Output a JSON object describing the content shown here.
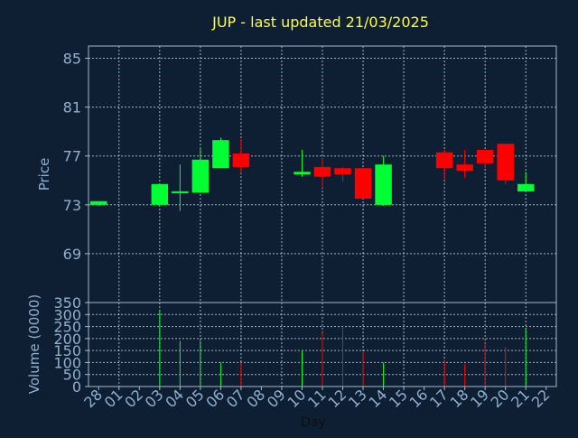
{
  "chart_data": {
    "type": "candlestick",
    "title": "JUP - last updated 21/03/2025",
    "xlabel": "Day",
    "ylabel_price": "Price",
    "ylabel_volume": "Volume (0000)",
    "price_ylim": [
      65,
      86
    ],
    "price_yticks": [
      69,
      73,
      77,
      81,
      85
    ],
    "volume_ylim": [
      0,
      350
    ],
    "volume_yticks": [
      0,
      50,
      100,
      150,
      200,
      250,
      300,
      350
    ],
    "grid": true,
    "x_tick_labels": [
      "28",
      "01",
      "02",
      "03",
      "04",
      "05",
      "06",
      "07",
      "08",
      "09",
      "10",
      "11",
      "12",
      "13",
      "14",
      "15",
      "16",
      "17",
      "18",
      "19",
      "20",
      "21",
      "22"
    ],
    "candles": [
      {
        "day": "28",
        "open": 73.0,
        "high": 73.3,
        "low": 72.9,
        "close": 73.3,
        "volume": 0
      },
      {
        "day": "03",
        "open": 73.0,
        "high": 74.7,
        "low": 73.0,
        "close": 74.7,
        "volume": 320
      },
      {
        "day": "04",
        "open": 74.0,
        "high": 76.3,
        "low": 72.5,
        "close": 74.1,
        "volume": 190
      },
      {
        "day": "05",
        "open": 74.0,
        "high": 77.7,
        "low": 74.0,
        "close": 76.7,
        "volume": 190
      },
      {
        "day": "06",
        "open": 76.0,
        "high": 78.5,
        "low": 76.0,
        "close": 78.3,
        "volume": 100
      },
      {
        "day": "07",
        "open": 77.2,
        "high": 78.4,
        "low": 75.6,
        "close": 76.1,
        "volume": 100
      },
      {
        "day": "10",
        "open": 75.5,
        "high": 77.5,
        "low": 75.3,
        "close": 75.7,
        "volume": 150
      },
      {
        "day": "11",
        "open": 76.1,
        "high": 76.8,
        "low": 74.4,
        "close": 75.3,
        "volume": 225
      },
      {
        "day": "12",
        "open": 76.0,
        "high": 76.1,
        "low": 74.9,
        "close": 75.5,
        "volume": 245
      },
      {
        "day": "13",
        "open": 76.0,
        "high": 76.0,
        "low": 73.5,
        "close": 73.5,
        "volume": 145
      },
      {
        "day": "14",
        "open": 73.0,
        "high": 77.0,
        "low": 72.9,
        "close": 76.3,
        "volume": 100
      },
      {
        "day": "17",
        "open": 77.3,
        "high": 77.5,
        "low": 75.1,
        "close": 76.0,
        "volume": 110
      },
      {
        "day": "18",
        "open": 76.3,
        "high": 77.5,
        "low": 75.2,
        "close": 75.8,
        "volume": 95
      },
      {
        "day": "19",
        "open": 77.5,
        "high": 77.5,
        "low": 76.0,
        "close": 76.4,
        "volume": 180
      },
      {
        "day": "20",
        "open": 78.0,
        "high": 78.0,
        "low": 74.7,
        "close": 75.0,
        "volume": 165
      },
      {
        "day": "21",
        "open": 74.1,
        "high": 75.7,
        "low": 74.1,
        "close": 74.7,
        "volume": 240
      }
    ],
    "colors": {
      "background": "#0f1f33",
      "plot_background": "#0f1f33",
      "up": "#00ff33",
      "down": "#ff0000",
      "title": "#ffff33",
      "tick_text": "#8fb0d0"
    }
  }
}
